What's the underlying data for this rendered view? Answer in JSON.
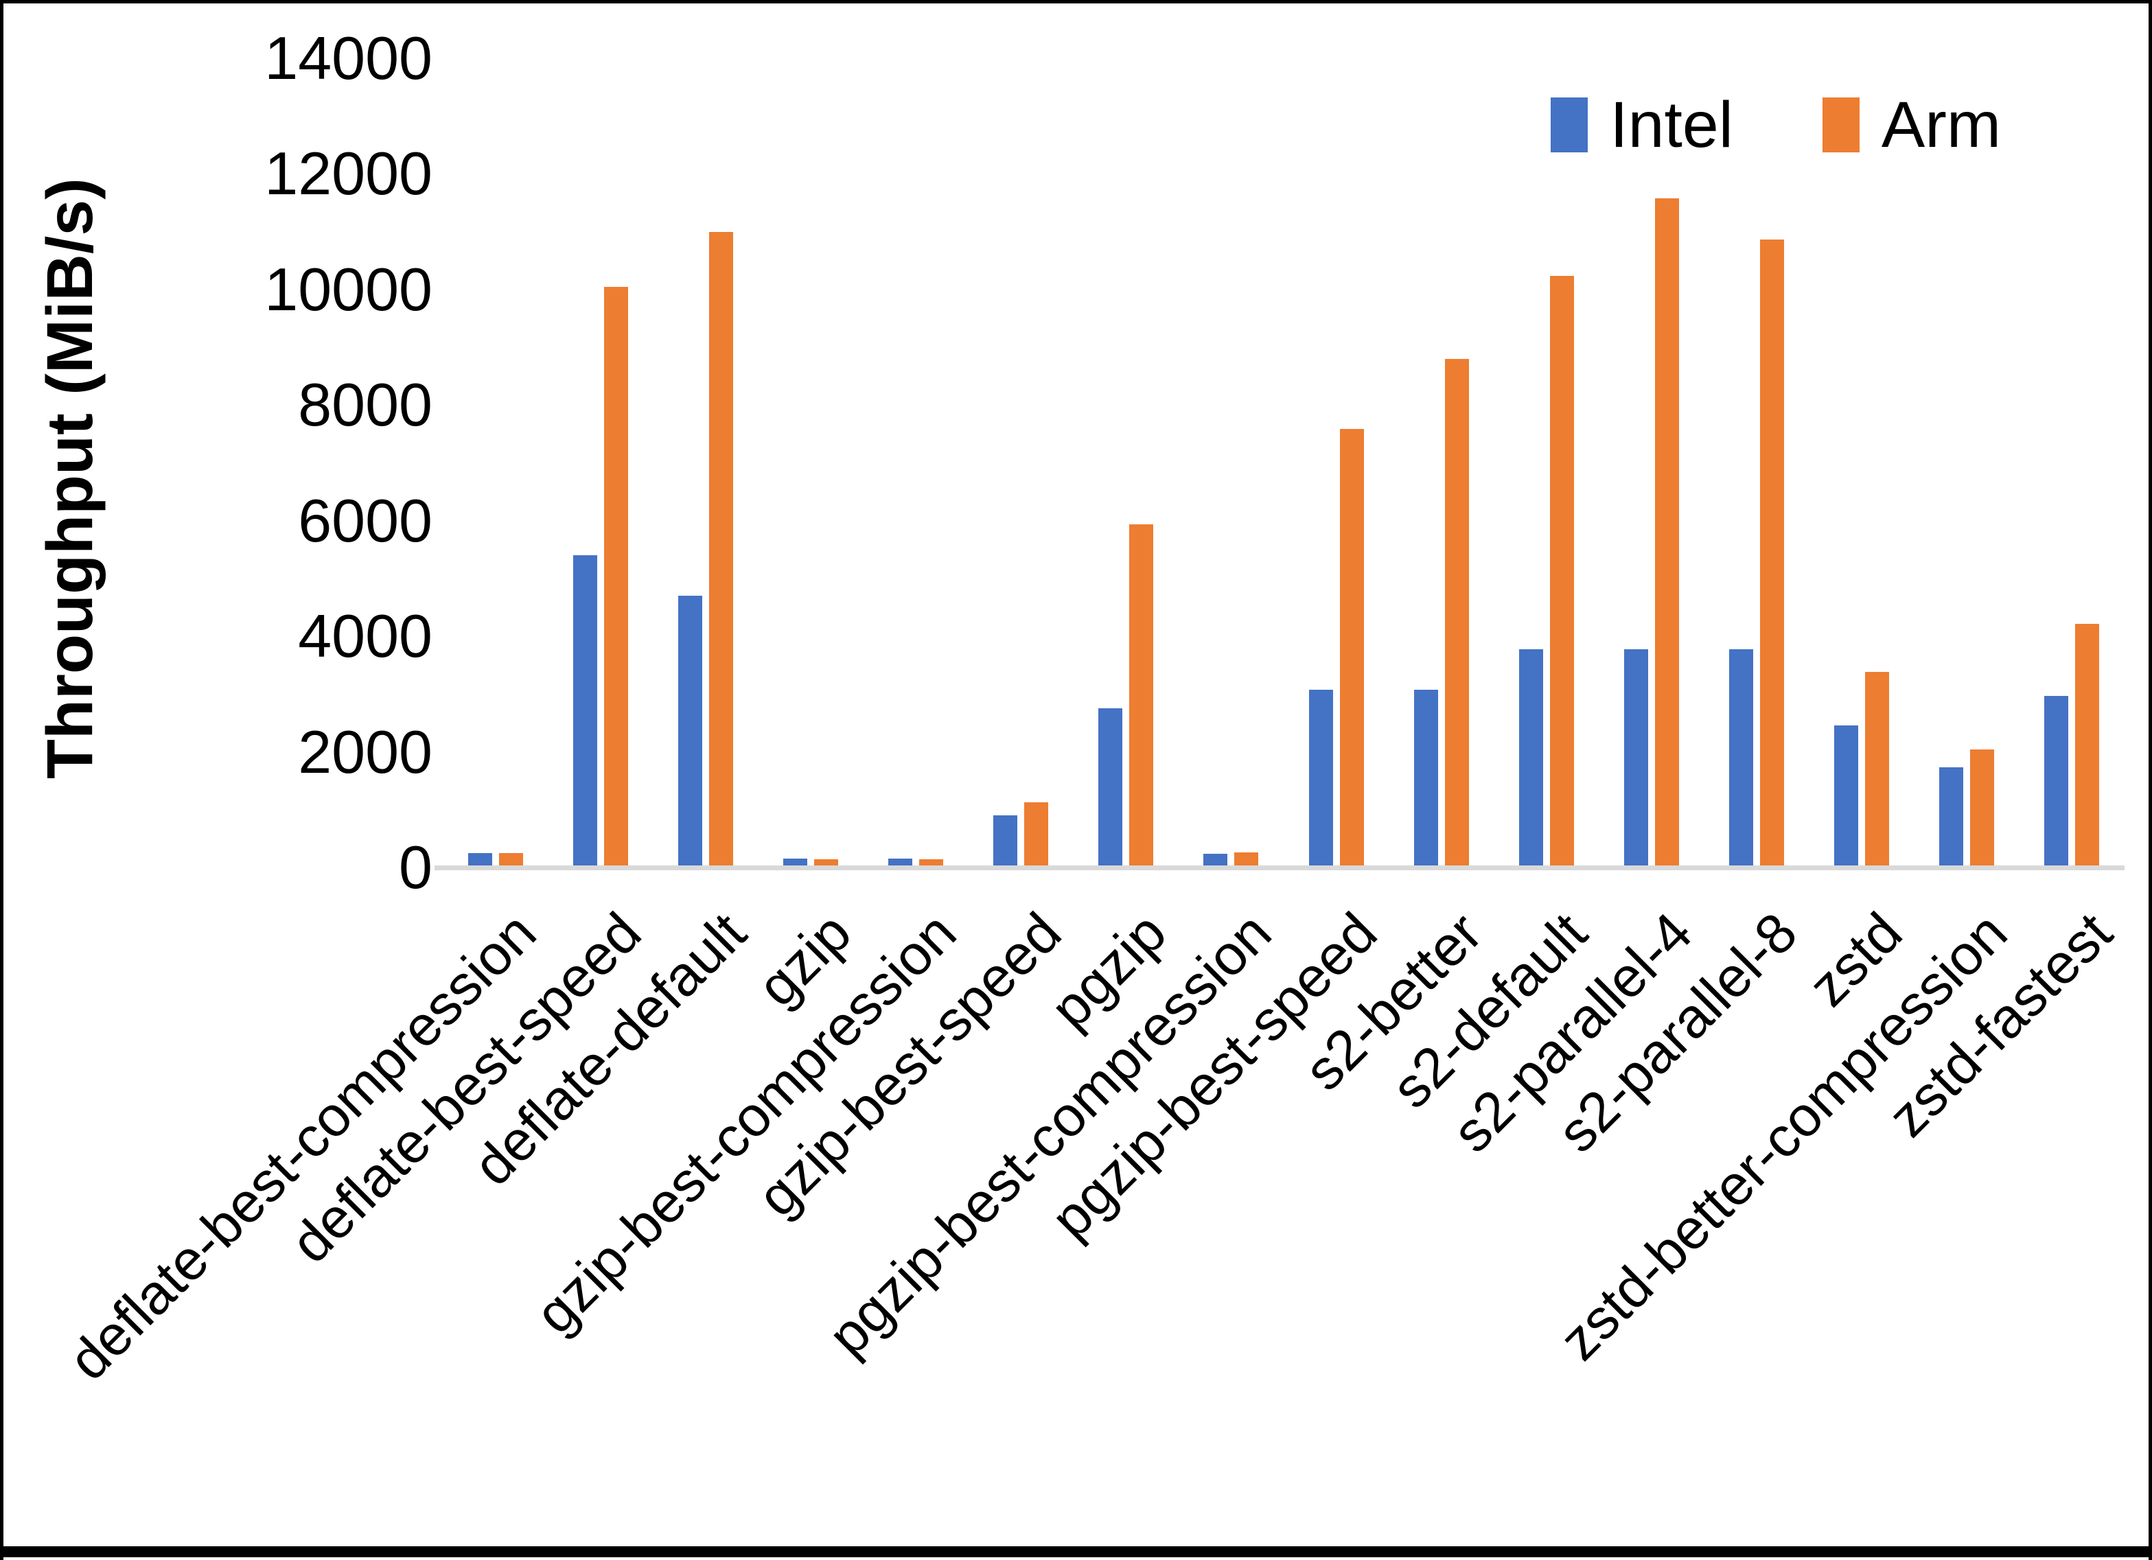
{
  "chart_data": {
    "type": "bar",
    "title": "",
    "xlabel": "",
    "ylabel": "Throughput (MiB/s)",
    "ylim": [
      0,
      14000
    ],
    "yticks": [
      0,
      2000,
      4000,
      6000,
      8000,
      10000,
      12000,
      14000
    ],
    "grid": false,
    "legend_position": "top-right",
    "axis_line_color": "#d9d9d9",
    "categories": [
      "deflate-best-compression",
      "deflate-best-speed",
      "deflate-default",
      "gzip",
      "gzip-best-compression",
      "gzip-best-speed",
      "pgzip",
      "pgzip-best-compression",
      "pgzip-best-speed",
      "s2-better",
      "s2-default",
      "s2-parallel-4",
      "s2-parallel-8",
      "zstd",
      "zstd-better-compression",
      "zstd-fastest"
    ],
    "series": [
      {
        "name": "Intel",
        "color": "#4472c4",
        "values": [
          250,
          5400,
          4700,
          160,
          160,
          900,
          2760,
          240,
          3070,
          3070,
          3780,
          3780,
          3780,
          2460,
          1730,
          2970
        ]
      },
      {
        "name": "Arm",
        "color": "#ed7d31",
        "values": [
          250,
          10050,
          11000,
          140,
          140,
          1130,
          5940,
          260,
          7590,
          8800,
          10240,
          11580,
          10860,
          3380,
          2040,
          4210
        ]
      }
    ]
  }
}
